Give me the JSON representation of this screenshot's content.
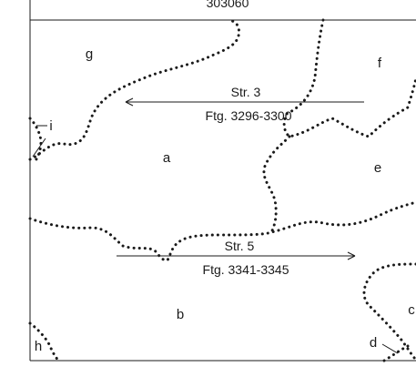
{
  "header": {
    "code": "303060"
  },
  "zones": {
    "a": "a",
    "b": "b",
    "c": "c",
    "d": "d",
    "e": "e",
    "f": "f",
    "g": "g",
    "h": "h",
    "i": "i"
  },
  "trenches": [
    {
      "label": "Str. 3",
      "sublabel": "Ftg. 3296-3300",
      "direction": "left"
    },
    {
      "label": "Str. 5",
      "sublabel": "Ftg. 3341-3345",
      "direction": "right"
    }
  ],
  "colors": {
    "ink": "#1a1a1a",
    "background": "#ffffff"
  }
}
